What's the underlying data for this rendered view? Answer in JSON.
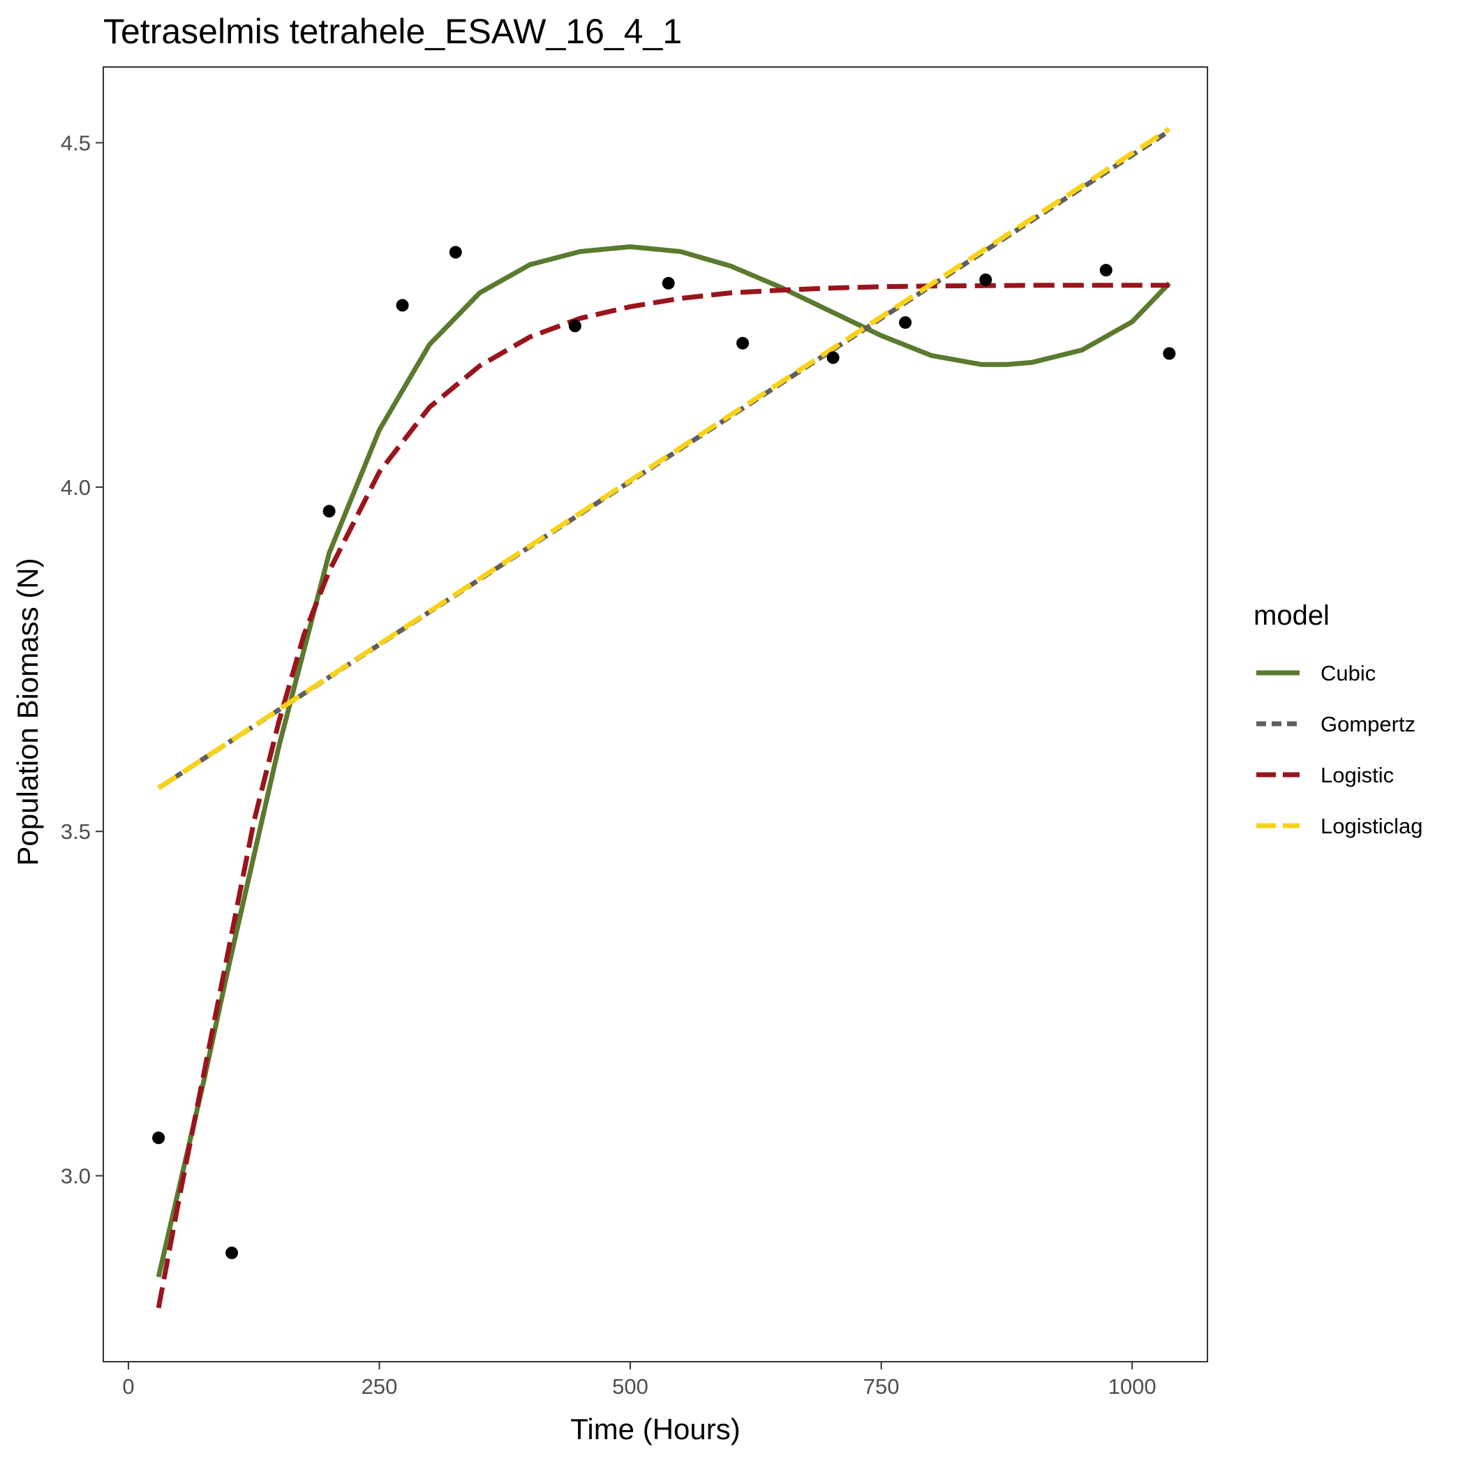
{
  "chart_data": {
    "type": "line",
    "title": "Tetraselmis tetrahele_ESAW_16_4_1",
    "xlabel": "Time (Hours)",
    "ylabel": "Population Biomass (N)",
    "xlim": [
      -25,
      1075
    ],
    "ylim": [
      2.73,
      4.61
    ],
    "x_ticks": [
      0,
      250,
      500,
      750,
      1000
    ],
    "x_tick_labels": [
      "0",
      "250",
      "500",
      "750",
      "1000"
    ],
    "y_ticks": [
      3.0,
      3.5,
      4.0,
      4.5
    ],
    "y_tick_labels": [
      "3.0",
      "3.5",
      "4.0",
      "4.5"
    ],
    "grid": false,
    "legend": {
      "title": "model",
      "position": "right"
    },
    "points": {
      "x": [
        30,
        103,
        200,
        273,
        326,
        445,
        538,
        612,
        702,
        774,
        854,
        974,
        1037
      ],
      "y": [
        3.055,
        2.888,
        3.965,
        4.264,
        4.341,
        4.234,
        4.296,
        4.209,
        4.188,
        4.239,
        4.301,
        4.315,
        4.194
      ]
    },
    "series": [
      {
        "name": "Cubic",
        "color": "#5a7a2e",
        "dash": "solid",
        "x": [
          30,
          75,
          100,
          150,
          200,
          250,
          300,
          350,
          400,
          450,
          500,
          550,
          600,
          650,
          700,
          750,
          800,
          850,
          875,
          900,
          950,
          1000,
          1037
        ],
        "y": [
          2.853,
          3.137,
          3.305,
          3.624,
          3.904,
          4.083,
          4.207,
          4.282,
          4.323,
          4.342,
          4.349,
          4.342,
          4.321,
          4.29,
          4.255,
          4.22,
          4.191,
          4.178,
          4.178,
          4.181,
          4.199,
          4.24,
          4.296
        ]
      },
      {
        "name": "Gompertz",
        "color": "#5f5f5f",
        "dash": "16 8",
        "x": [
          30,
          1037
        ],
        "y": [
          3.563,
          4.517
        ]
      },
      {
        "name": "Logistic",
        "color": "#9a141c",
        "dash": "30 12",
        "x": [
          30,
          50,
          75,
          100,
          125,
          150,
          175,
          200,
          250,
          300,
          350,
          400,
          450,
          500,
          550,
          600,
          650,
          700,
          750,
          800,
          900,
          1000,
          1037
        ],
        "y": [
          2.808,
          2.963,
          3.147,
          3.33,
          3.514,
          3.66,
          3.786,
          3.878,
          4.022,
          4.116,
          4.176,
          4.218,
          4.245,
          4.262,
          4.274,
          4.282,
          4.286,
          4.289,
          4.291,
          4.292,
          4.293,
          4.293,
          4.293
        ]
      },
      {
        "name": "Logisticlag",
        "color": "#f8d21a",
        "dash": "30 12",
        "x": [
          30,
          1037
        ],
        "y": [
          3.563,
          4.52
        ]
      }
    ]
  }
}
